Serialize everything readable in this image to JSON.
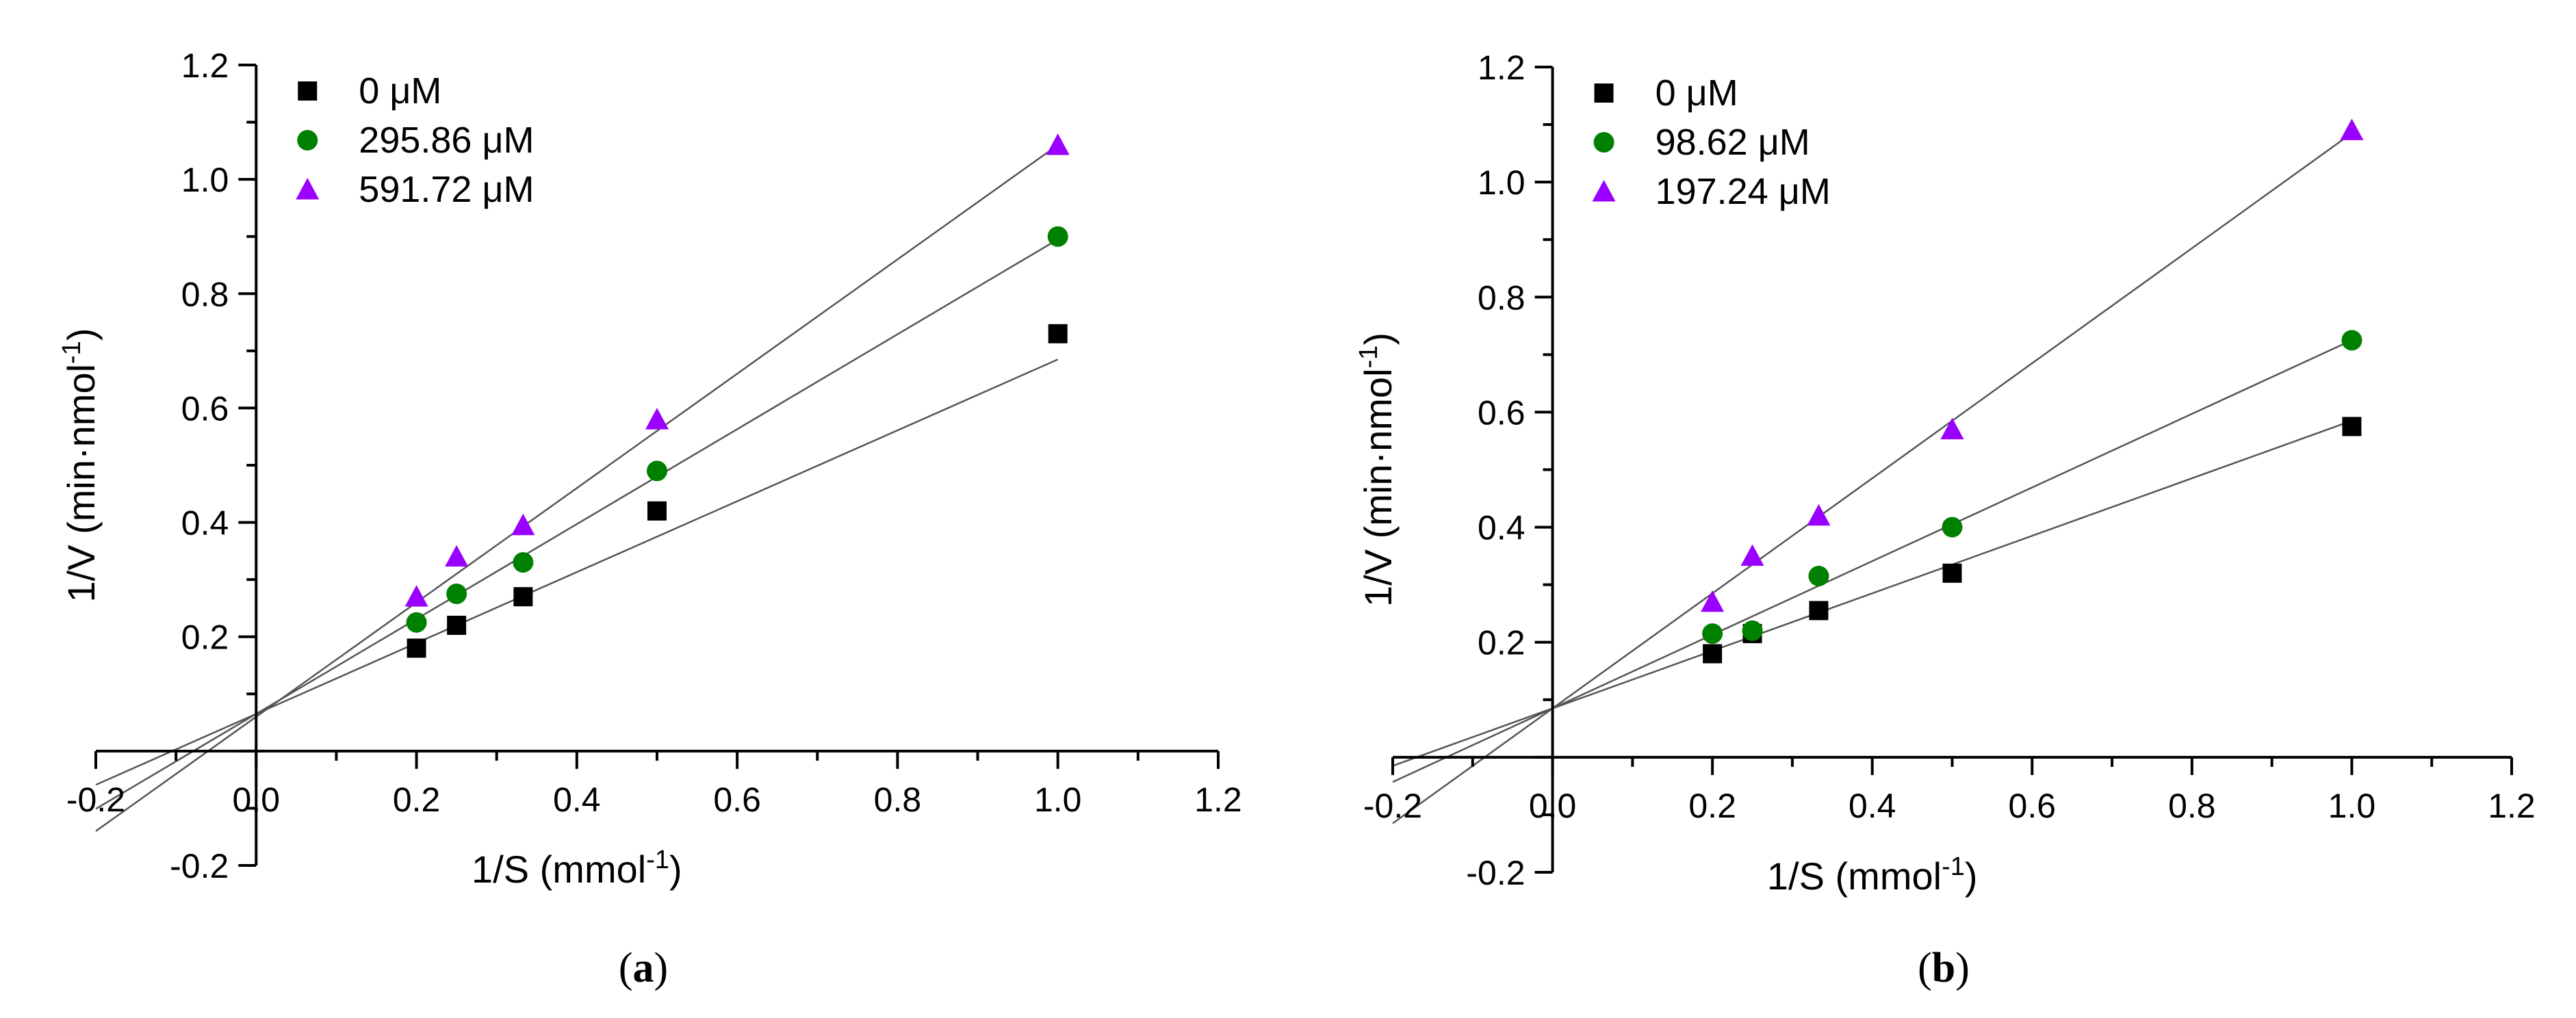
{
  "figure": {
    "panels": [
      {
        "label_open": "(",
        "label_letter": "a",
        "label_close": ")"
      },
      {
        "label_open": "(",
        "label_letter": "b",
        "label_close": ")"
      }
    ]
  },
  "chart_data": [
    {
      "type": "scatter",
      "panel": "a",
      "title": "",
      "xlabel": "1/S (mmol",
      "xlabel_sup": "-1",
      "xlabel_end": ")",
      "ylabel": "1/V (min·nmol",
      "ylabel_sup": "-1",
      "ylabel_end": ")",
      "xlim": [
        -0.2,
        1.2
      ],
      "ylim": [
        -0.2,
        1.2
      ],
      "xticks": [
        -0.2,
        0.0,
        0.2,
        0.4,
        0.6,
        0.8,
        1.0,
        1.2
      ],
      "yticks": [
        -0.2,
        0.2,
        0.4,
        0.6,
        0.8,
        1.0,
        1.2
      ],
      "x_tick_labels": [
        "-0.2",
        "0.0",
        "0.2",
        "0.4",
        "0.6",
        "0.8",
        "1.0",
        "1.2"
      ],
      "y_tick_labels": [
        "-0.2",
        "0.2",
        "0.4",
        "0.6",
        "0.8",
        "1.0",
        "1.2"
      ],
      "legend_position": "top-left",
      "series": [
        {
          "name": "0 μM",
          "marker": "square",
          "color": "#000000",
          "x": [
            0.2,
            0.25,
            0.333,
            0.5,
            1.0
          ],
          "y": [
            0.18,
            0.22,
            0.27,
            0.42,
            0.73
          ],
          "fit": {
            "slope": 0.62,
            "intercept": 0.065
          }
        },
        {
          "name": "295.86 μM",
          "marker": "circle",
          "color": "#008000",
          "x": [
            0.2,
            0.25,
            0.333,
            0.5,
            1.0
          ],
          "y": [
            0.225,
            0.275,
            0.33,
            0.49,
            0.9
          ],
          "fit": {
            "slope": 0.83,
            "intercept": 0.065
          }
        },
        {
          "name": "591.72 μM",
          "marker": "triangle",
          "color": "#9900ff",
          "x": [
            0.2,
            0.25,
            0.333,
            0.5,
            1.0
          ],
          "y": [
            0.27,
            0.34,
            0.395,
            0.58,
            1.06
          ],
          "fit": {
            "slope": 1.0,
            "intercept": 0.06
          }
        }
      ]
    },
    {
      "type": "scatter",
      "panel": "b",
      "title": "",
      "xlabel": "1/S (mmol",
      "xlabel_sup": "-1",
      "xlabel_end": ")",
      "ylabel": "1/V (min·nmol",
      "ylabel_sup": "-1",
      "ylabel_end": ")",
      "xlim": [
        -0.2,
        1.2
      ],
      "ylim": [
        -0.2,
        1.2
      ],
      "xticks": [
        -0.2,
        0.0,
        0.2,
        0.4,
        0.6,
        0.8,
        1.0,
        1.2
      ],
      "yticks": [
        -0.2,
        0.2,
        0.4,
        0.6,
        0.8,
        1.0,
        1.2
      ],
      "x_tick_labels": [
        "-0.2",
        "0.0",
        "0.2",
        "0.4",
        "0.6",
        "0.8",
        "1.0",
        "1.2"
      ],
      "y_tick_labels": [
        "-0.2",
        "0.2",
        "0.4",
        "0.6",
        "0.8",
        "1.0",
        "1.2"
      ],
      "legend_position": "top-left",
      "series": [
        {
          "name": "0 μM",
          "marker": "square",
          "color": "#000000",
          "x": [
            0.2,
            0.25,
            0.333,
            0.5,
            1.0
          ],
          "y": [
            0.18,
            0.215,
            0.255,
            0.32,
            0.575
          ],
          "fit": {
            "slope": 0.5,
            "intercept": 0.085
          }
        },
        {
          "name": "98.62 μM",
          "marker": "circle",
          "color": "#008000",
          "x": [
            0.2,
            0.25,
            0.333,
            0.5,
            1.0
          ],
          "y": [
            0.215,
            0.22,
            0.315,
            0.4,
            0.725
          ],
          "fit": {
            "slope": 0.64,
            "intercept": 0.085
          }
        },
        {
          "name": "197.24 μM",
          "marker": "triangle",
          "color": "#9900ff",
          "x": [
            0.2,
            0.25,
            0.333,
            0.5,
            1.0
          ],
          "y": [
            0.27,
            0.35,
            0.42,
            0.57,
            1.09
          ],
          "fit": {
            "slope": 1.0,
            "intercept": 0.085
          }
        }
      ]
    }
  ]
}
